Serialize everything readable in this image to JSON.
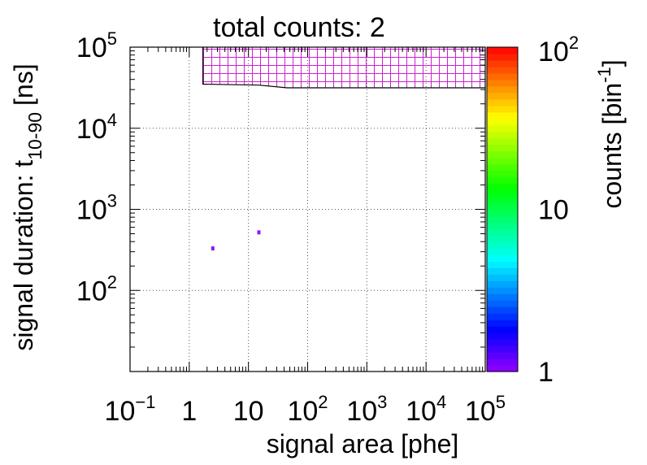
{
  "chart_data": {
    "type": "heatmap",
    "title": "total counts: 2",
    "xlabel": "signal area [phe]",
    "ylabel_main": "signal duration: t",
    "ylabel_sub": "10-90",
    "ylabel_unit": "[ns]",
    "x_scale": "log",
    "y_scale": "log",
    "xlim": [
      0.1,
      100000
    ],
    "ylim": [
      10,
      100000
    ],
    "grid": true,
    "x_ticks": [
      {
        "value": 0.1,
        "base": "10",
        "exp": "−1"
      },
      {
        "value": 1,
        "base": "1",
        "exp": ""
      },
      {
        "value": 10,
        "base": "10",
        "exp": ""
      },
      {
        "value": 100,
        "base": "10",
        "exp": "2"
      },
      {
        "value": 1000,
        "base": "10",
        "exp": "3"
      },
      {
        "value": 10000,
        "base": "10",
        "exp": "4"
      },
      {
        "value": 100000,
        "base": "10",
        "exp": "5"
      }
    ],
    "y_ticks": [
      {
        "value": 100,
        "base": "10",
        "exp": "2"
      },
      {
        "value": 1000,
        "base": "10",
        "exp": "3"
      },
      {
        "value": 10000,
        "base": "10",
        "exp": "4"
      },
      {
        "value": 100000,
        "base": "10",
        "exp": "5"
      }
    ],
    "colorbar": {
      "label_main": "counts [bin",
      "label_exp": "-1",
      "label_close": "]",
      "scale": "log",
      "range": [
        1,
        100
      ],
      "ticks": [
        {
          "value": 1,
          "base": "1",
          "exp": ""
        },
        {
          "value": 10,
          "base": "10",
          "exp": ""
        },
        {
          "value": 100,
          "base": "10",
          "exp": "2"
        }
      ]
    },
    "points": [
      {
        "x": 2.5,
        "y": 330,
        "count": 1
      },
      {
        "x": 15,
        "y": 520,
        "count": 1
      }
    ],
    "excluded_region": {
      "hatch_color": "#cc22cc",
      "boundary": [
        {
          "x": 1.7,
          "y": 100000
        },
        {
          "x": 1.7,
          "y": 35000
        },
        {
          "x": 15,
          "y": 34000
        },
        {
          "x": 45,
          "y": 31500
        },
        {
          "x": 100000,
          "y": 31500
        },
        {
          "x": 100000,
          "y": 100000
        }
      ]
    }
  }
}
